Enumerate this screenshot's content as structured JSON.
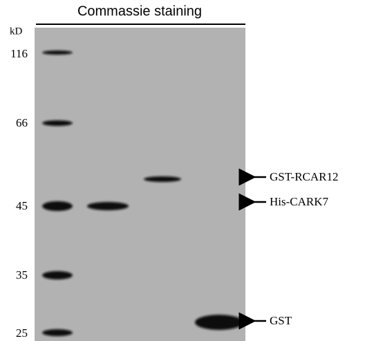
{
  "title": "Commassie staining",
  "unit": "kD",
  "markers": [
    "116",
    "66",
    "45",
    "35",
    "25"
  ],
  "annotations": [
    "GST-RCAR12",
    "His-CARK7",
    "GST"
  ]
}
